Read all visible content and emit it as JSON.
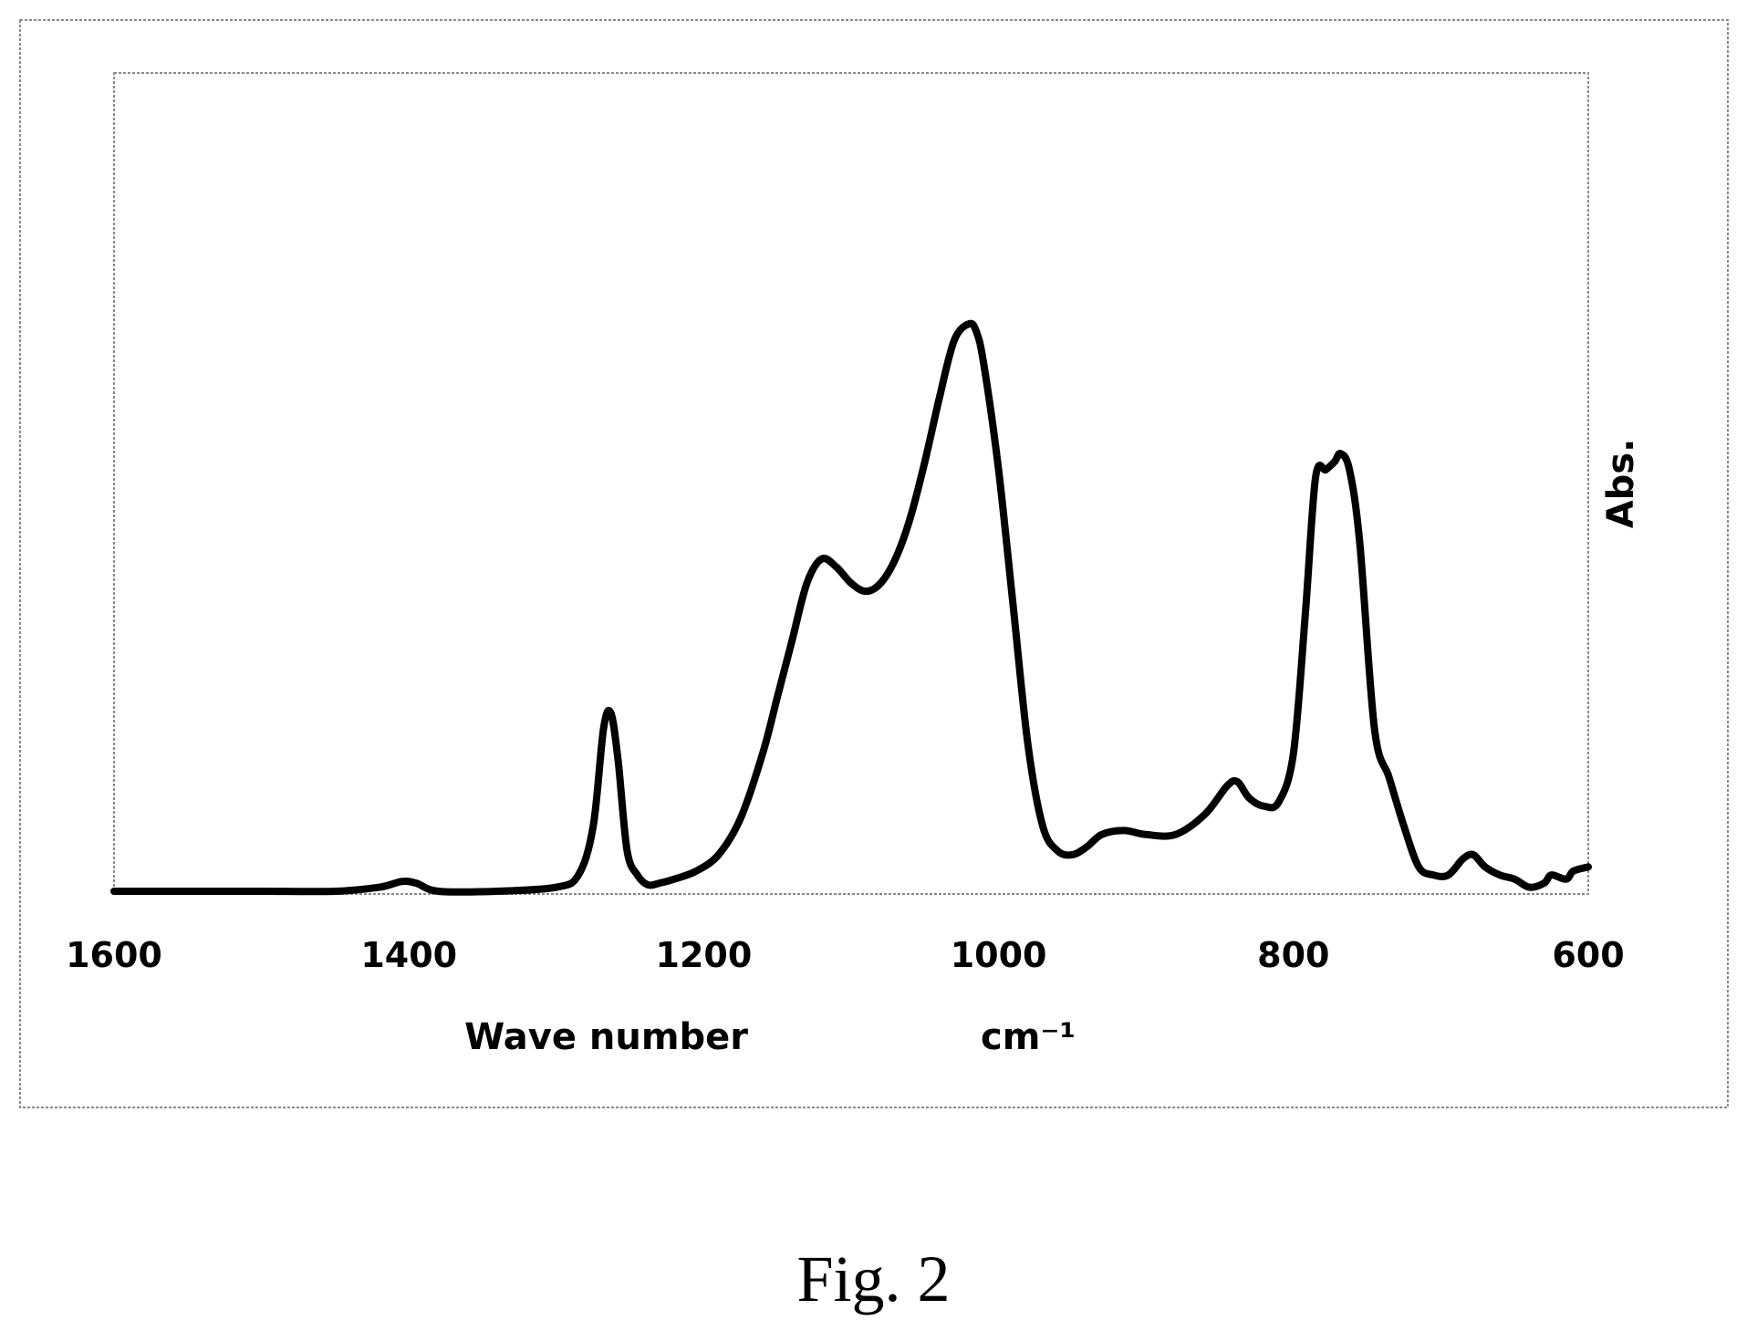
{
  "chart_data": {
    "type": "line",
    "title": "",
    "xlabel": "Wave number",
    "xlabel_unit": "cm⁻¹",
    "ylabel": "Abs.",
    "xlim": [
      1600,
      600
    ],
    "x_reversed": true,
    "ylim": [
      0,
      1
    ],
    "x_ticks": [
      "1600",
      "1400",
      "1200",
      "1000",
      "800",
      "600"
    ],
    "y_ticks": [],
    "grid": false,
    "legend": "none",
    "line_color": "#000000",
    "series": [
      {
        "x": [
          1600,
          1550,
          1500,
          1450,
          1420,
          1405,
          1395,
          1380,
          1340,
          1300,
          1285,
          1275,
          1268,
          1263,
          1258,
          1252,
          1245,
          1238,
          1230,
          1220,
          1205,
          1190,
          1175,
          1160,
          1150,
          1140,
          1130,
          1120,
          1110,
          1100,
          1090,
          1080,
          1070,
          1060,
          1050,
          1040,
          1030,
          1020,
          1015,
          1010,
          1000,
          990,
          980,
          970,
          960,
          950,
          940,
          930,
          915,
          900,
          880,
          860,
          845,
          838,
          830,
          820,
          810,
          800,
          792,
          785,
          778,
          772,
          768,
          762,
          755,
          745,
          735,
          725,
          715,
          705,
          695,
          685,
          678,
          670,
          660,
          650,
          640,
          630,
          625,
          615,
          610,
          600
        ],
        "y": [
          0.0,
          0.0,
          0.0,
          0.0,
          0.005,
          0.012,
          0.01,
          0.0,
          0.0,
          0.005,
          0.02,
          0.08,
          0.2,
          0.22,
          0.16,
          0.05,
          0.02,
          0.008,
          0.01,
          0.015,
          0.025,
          0.045,
          0.09,
          0.17,
          0.24,
          0.31,
          0.38,
          0.41,
          0.4,
          0.38,
          0.37,
          0.38,
          0.41,
          0.46,
          0.53,
          0.61,
          0.68,
          0.7,
          0.69,
          0.65,
          0.52,
          0.35,
          0.18,
          0.08,
          0.05,
          0.045,
          0.055,
          0.07,
          0.075,
          0.07,
          0.07,
          0.095,
          0.13,
          0.135,
          0.115,
          0.105,
          0.11,
          0.17,
          0.34,
          0.51,
          0.52,
          0.53,
          0.54,
          0.52,
          0.43,
          0.2,
          0.14,
          0.08,
          0.03,
          0.02,
          0.02,
          0.04,
          0.045,
          0.03,
          0.02,
          0.015,
          0.005,
          0.01,
          0.02,
          0.015,
          0.025,
          0.03
        ]
      }
    ]
  },
  "caption": "Fig. 2"
}
